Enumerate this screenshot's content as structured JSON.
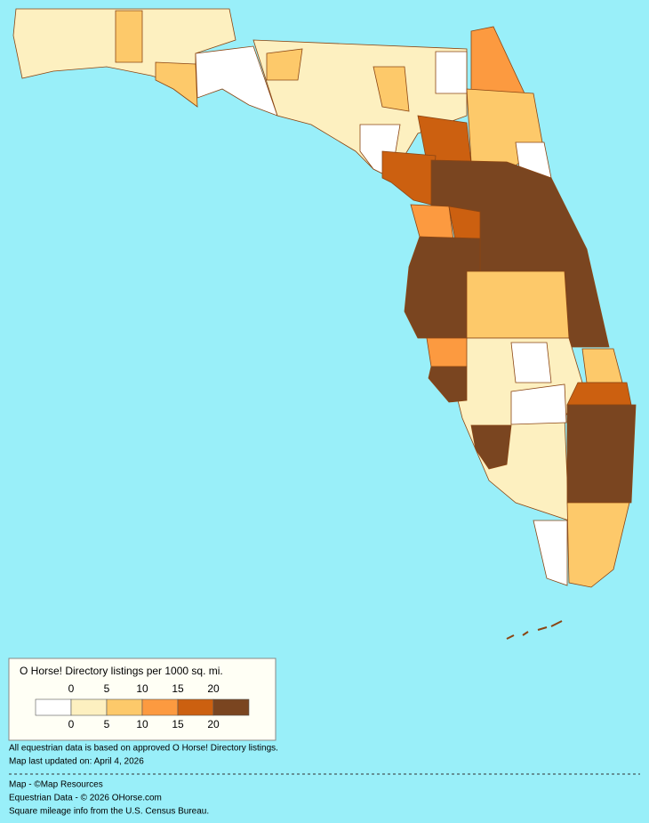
{
  "legend": {
    "title": "O Horse! Directory listings per 1000 sq. mi.",
    "ticks": [
      0,
      5,
      10,
      15,
      20
    ],
    "colors": [
      "#ffffff",
      "#fdf0c0",
      "#fdc96a",
      "#fc9a40",
      "#cc6010",
      "#7a4520"
    ]
  },
  "notes": [
    "All equestrian data is based on approved O Horse! Directory listings.",
    "Map last updated on: April 4, 2026"
  ],
  "credits": [
    "Map - ©Map Resources",
    "Equestrian Data - © 2026 OHorse.com",
    "Square mileage info from the U.S. Census Bureau."
  ]
}
